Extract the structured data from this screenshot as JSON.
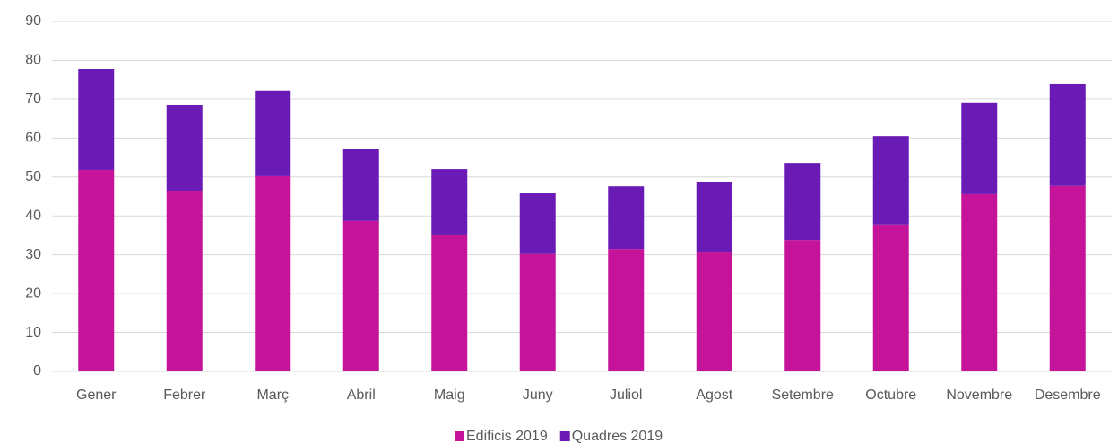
{
  "chart_data": {
    "type": "stacked_bar",
    "categories": [
      "Gener",
      "Febrer",
      "Març",
      "Abril",
      "Maig",
      "Juny",
      "Juliol",
      "Agost",
      "Setembre",
      "Octubre",
      "Novembre",
      "Desembre"
    ],
    "series": [
      {
        "name": "Edificis 2019",
        "color": "#c5139a",
        "values": [
          51.8,
          46.5,
          50.2,
          38.7,
          35.0,
          30.2,
          31.5,
          30.6,
          33.8,
          37.8,
          45.6,
          47.7
        ]
      },
      {
        "name": "Quadres 2019",
        "color": "#6a1bb5",
        "values": [
          26.0,
          22.1,
          21.9,
          18.4,
          17.0,
          15.6,
          16.1,
          18.2,
          19.8,
          22.7,
          23.5,
          26.2
        ]
      }
    ],
    "ylim": [
      0,
      90
    ],
    "yticks": [
      0,
      10,
      20,
      30,
      40,
      50,
      60,
      70,
      80,
      90
    ],
    "grid": true,
    "legend": "bottom"
  }
}
